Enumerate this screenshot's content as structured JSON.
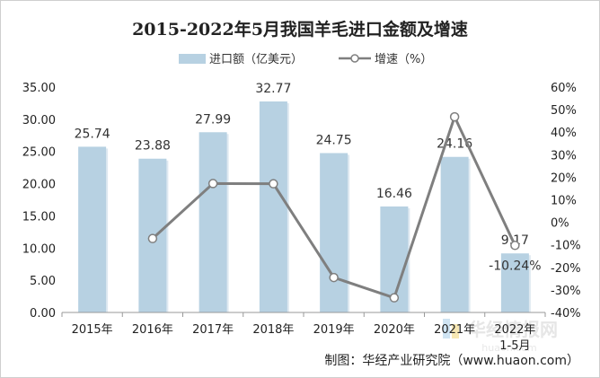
{
  "chart_data": {
    "type": "bar",
    "title": "2015-2022年5月我国羊毛进口金额及增速",
    "categories": [
      "2015年",
      "2016年",
      "2017年",
      "2018年",
      "2019年",
      "2020年",
      "2021年",
      "2022年 1-5月"
    ],
    "category_lines": [
      [
        "2015年"
      ],
      [
        "2016年"
      ],
      [
        "2017年"
      ],
      [
        "2018年"
      ],
      [
        "2019年"
      ],
      [
        "2020年"
      ],
      [
        "2021年"
      ],
      [
        "2022年",
        "1-5月"
      ]
    ],
    "series": [
      {
        "name": "进口额（亿美元）",
        "kind": "bar",
        "axis": "left",
        "color": "#b7d1e2",
        "values": [
          25.74,
          23.88,
          27.99,
          32.77,
          24.75,
          16.46,
          24.16,
          9.17
        ],
        "labels": [
          "25.74",
          "23.88",
          "27.99",
          "32.77",
          "24.75",
          "16.46",
          "24.16",
          "9.17"
        ]
      },
      {
        "name": "增速（%）",
        "kind": "line",
        "axis": "right",
        "color": "#7f7f7f",
        "values": [
          null,
          -7.2,
          17.2,
          17.1,
          -24.5,
          -33.5,
          46.8,
          -10.24
        ],
        "visible_labels": {
          "7": "-10.24%"
        }
      }
    ],
    "y_left": {
      "min": 0,
      "max": 35,
      "step": 5,
      "tick_labels": [
        "0.00",
        "5.00",
        "10.00",
        "15.00",
        "20.00",
        "25.00",
        "30.00",
        "35.00"
      ]
    },
    "y_right": {
      "min": -40,
      "max": 60,
      "step": 10,
      "tick_labels": [
        "-40%",
        "-30%",
        "-20%",
        "-10%",
        "0%",
        "10%",
        "20%",
        "30%",
        "40%",
        "50%",
        "60%"
      ]
    },
    "legend_position": "top-center",
    "grid": false
  },
  "source_note": "制图：华经产业研究院（www.huaon.com）",
  "watermark": {
    "text": "华经情报网",
    "sub": "huaon.com"
  }
}
